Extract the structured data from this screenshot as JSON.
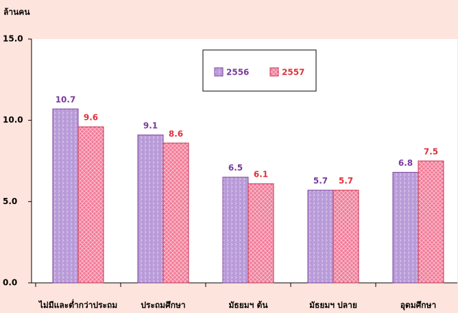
{
  "chart_data": {
    "type": "bar",
    "y_axis_label": "ล้านคน",
    "categories": [
      "ไม่มีและต่ำกว่าประถม",
      "ประถมศึกษา",
      "มัธยมฯ ต้น",
      "มัธยมฯ ปลาย",
      "อุดมศึกษา"
    ],
    "series": [
      {
        "name": "2556",
        "color": "#b89ad8",
        "values": [
          10.7,
          9.1,
          6.5,
          5.7,
          6.8
        ]
      },
      {
        "name": "2557",
        "color": "#f27896",
        "values": [
          9.6,
          8.6,
          6.1,
          5.7,
          7.5
        ]
      }
    ],
    "ylim": [
      0,
      15
    ],
    "yticks": [
      {
        "value": 0,
        "label": "0.0"
      },
      {
        "value": 5,
        "label": "5.0"
      },
      {
        "value": 10,
        "label": "10.0"
      },
      {
        "value": 15,
        "label": "15.0"
      }
    ],
    "grid": false,
    "legend": "top"
  }
}
